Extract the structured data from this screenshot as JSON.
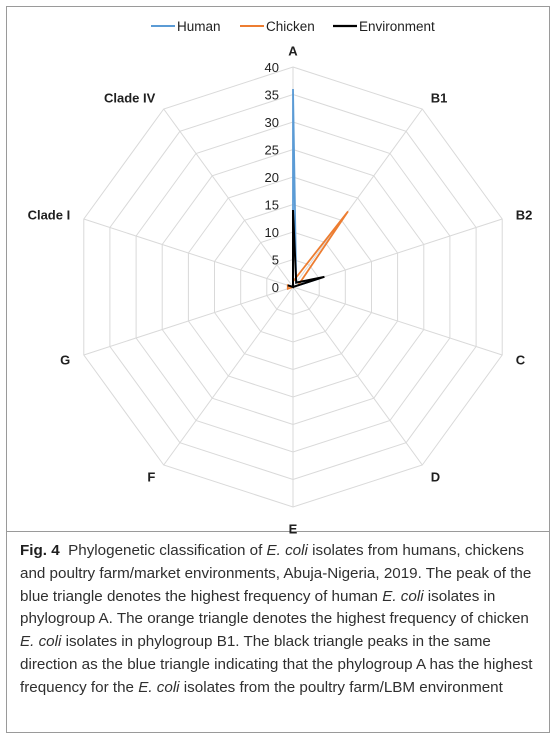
{
  "chart_data": {
    "type": "radar",
    "categories": [
      "A",
      "B1",
      "B2",
      "C",
      "D",
      "E",
      "F",
      "G",
      "Clade I",
      "Clade IV"
    ],
    "radial_ticks": [
      0,
      5,
      10,
      15,
      20,
      25,
      30,
      35,
      40
    ],
    "rlim": [
      0,
      40
    ],
    "legend_position": "top",
    "series": [
      {
        "name": "Human",
        "color": "#5b9bd5",
        "values": [
          36,
          1,
          5,
          0,
          0,
          0,
          0,
          0,
          0,
          0
        ]
      },
      {
        "name": "Chicken",
        "color": "#ed7d31",
        "values": [
          1,
          17,
          1,
          0,
          0,
          0,
          0,
          1,
          1,
          0
        ]
      },
      {
        "name": "Environment",
        "color": "#000000",
        "values": [
          14,
          1,
          6,
          0,
          0,
          0,
          0,
          0,
          1,
          0
        ]
      }
    ]
  },
  "caption": {
    "fig_label": "Fig. 4",
    "seg1": "Phylogenetic classification of ",
    "seg2": "E. coli",
    "seg3": " isolates from humans, chickens and poultry farm/market environments, Abuja-Nigeria, 2019. The peak of the blue triangle denotes the highest frequency of human ",
    "seg4": "E. coli",
    "seg5": " isolates in phylogroup A. The orange triangle denotes the highest frequency of chicken ",
    "seg6": "E. coli",
    "seg7": " isolates in phylogroup B1. The black triangle peaks in the same direction as the blue triangle indicating that the phylogroup A has the highest frequency for the ",
    "seg8": "E. coli",
    "seg9": " isolates from the poultry farm/LBM environment"
  }
}
